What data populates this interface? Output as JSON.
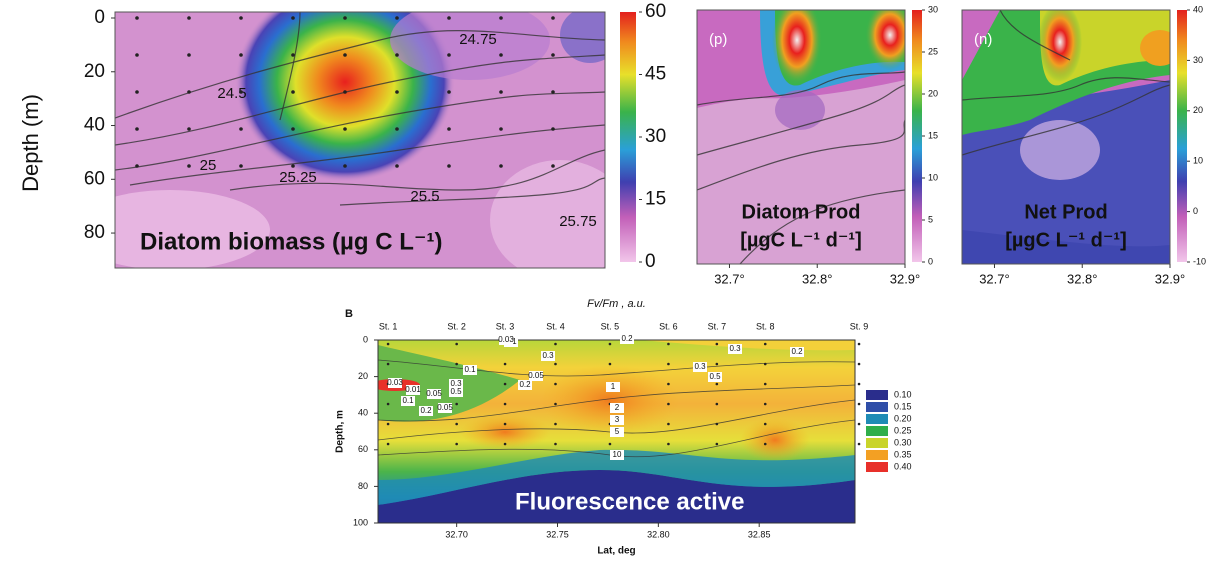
{
  "chart_data": [
    {
      "type": "contour",
      "y_label": "Depth (m)",
      "ylim": [
        0,
        93
      ],
      "yticks": [
        0,
        20,
        40,
        60,
        80
      ],
      "colorbar": {
        "lim": [
          0,
          60
        ],
        "ticks": [
          0,
          15,
          30,
          45,
          60
        ]
      },
      "annotation": "Diatom biomass (µg C L⁻¹)",
      "contour_labels": [
        24.75,
        24.5,
        25,
        25.25,
        25.5,
        25.75
      ]
    },
    {
      "type": "contour",
      "panel_label": "(p)",
      "xlim": [
        32.663,
        32.9
      ],
      "xticks": [
        {
          "value": 32.7,
          "label": "32.7°"
        },
        {
          "value": 32.8,
          "label": "32.8°"
        },
        {
          "value": 32.9,
          "label": "32.9°"
        }
      ],
      "colorbar": {
        "lim": [
          0,
          30
        ],
        "ticks": [
          0,
          5,
          10,
          15,
          20,
          25,
          30
        ]
      },
      "annotation": [
        "Diatom Prod",
        "[µgC L⁻¹ d⁻¹]"
      ]
    },
    {
      "type": "contour",
      "panel_label": "(n)",
      "xlim": [
        32.663,
        32.9
      ],
      "xticks": [
        {
          "value": 32.7,
          "label": "32.7°"
        },
        {
          "value": 32.8,
          "label": "32.8°"
        },
        {
          "value": 32.9,
          "label": "32.9°"
        }
      ],
      "colorbar": {
        "lim": [
          -10,
          40
        ],
        "ticks": [
          -10,
          0,
          10,
          20,
          30,
          40
        ]
      },
      "annotation": [
        "Net Prod",
        "[µgC L⁻¹ d⁻¹]"
      ]
    },
    {
      "type": "contour",
      "panel_label": "B",
      "title": "Fv/Fm , a.u.",
      "x_label": "Lat, deg",
      "y_label": "Depth, m",
      "xlim": [
        32.661,
        32.8975
      ],
      "xticks": [
        {
          "value": 32.7,
          "label": "32.70"
        },
        {
          "value": 32.75,
          "label": "32.75"
        },
        {
          "value": 32.8,
          "label": "32.80"
        },
        {
          "value": 32.85,
          "label": "32.85"
        }
      ],
      "ylim": [
        0,
        100
      ],
      "yticks": [
        0,
        20,
        40,
        60,
        80,
        100
      ],
      "stations": {
        "names": [
          "St. 1",
          "St. 2",
          "St. 3",
          "St. 4",
          "St. 5",
          "St. 6",
          "St. 7",
          "St. 8",
          "St. 9"
        ],
        "x": [
          32.666,
          32.7,
          32.724,
          32.749,
          32.776,
          32.805,
          32.829,
          32.853,
          32.8995
        ]
      },
      "legend": [
        {
          "value": 0.1,
          "label": "0.10",
          "color": "#2a2d8c"
        },
        {
          "value": 0.15,
          "label": "0.15",
          "color": "#2f4ea8"
        },
        {
          "value": 0.2,
          "label": "0.20",
          "color": "#1f8bb5"
        },
        {
          "value": 0.25,
          "label": "0.25",
          "color": "#2fae4a"
        },
        {
          "value": 0.3,
          "label": "0.30",
          "color": "#c9d42a"
        },
        {
          "value": 0.35,
          "label": "0.35",
          "color": "#f3a023"
        },
        {
          "value": 0.4,
          "label": "0.40",
          "color": "#e8302a"
        }
      ],
      "annotation": "Fluorescence active",
      "contour_labels": [
        0.2,
        0.1,
        0.03,
        0.3,
        0.2,
        0.3,
        0.1,
        0.3,
        0.5,
        0.05,
        0.2,
        1,
        0.3,
        0.5,
        2,
        3,
        5,
        10,
        0.03,
        0.01,
        0.05,
        0.1,
        0.2,
        0.05
      ]
    }
  ]
}
